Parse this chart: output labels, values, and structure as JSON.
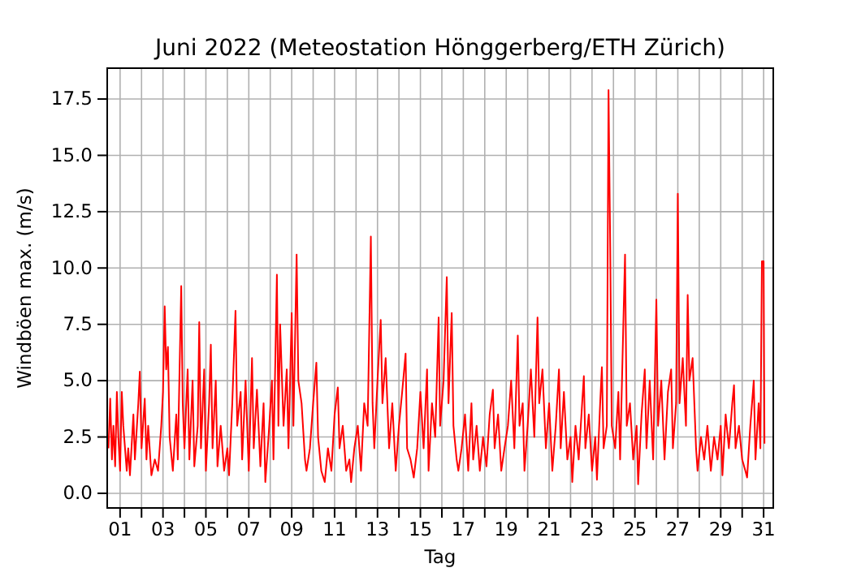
{
  "chart_data": {
    "type": "line",
    "title": "Juni 2022  (Meteostation Hönggerberg/ETH Zürich)",
    "xlabel": "Tag",
    "ylabel": "Windböen max. (m/s)",
    "grid": true,
    "line_style": "solid",
    "marker": "none",
    "xlim": [
      0.4,
      31.45
    ],
    "ylim": [
      -0.65,
      18.87
    ],
    "xticks": [
      {
        "value": 1,
        "label": "01"
      },
      {
        "value": 2,
        "label": null
      },
      {
        "value": 3,
        "label": "03"
      },
      {
        "value": 4,
        "label": null
      },
      {
        "value": 5,
        "label": "05"
      },
      {
        "value": 6,
        "label": null
      },
      {
        "value": 7,
        "label": "07"
      },
      {
        "value": 8,
        "label": null
      },
      {
        "value": 9,
        "label": "09"
      },
      {
        "value": 10,
        "label": null
      },
      {
        "value": 11,
        "label": "11"
      },
      {
        "value": 12,
        "label": null
      },
      {
        "value": 13,
        "label": "13"
      },
      {
        "value": 14,
        "label": null
      },
      {
        "value": 15,
        "label": "15"
      },
      {
        "value": 16,
        "label": null
      },
      {
        "value": 17,
        "label": "17"
      },
      {
        "value": 18,
        "label": null
      },
      {
        "value": 19,
        "label": "19"
      },
      {
        "value": 20,
        "label": null
      },
      {
        "value": 21,
        "label": "21"
      },
      {
        "value": 22,
        "label": null
      },
      {
        "value": 23,
        "label": "23"
      },
      {
        "value": 24,
        "label": null
      },
      {
        "value": 25,
        "label": "25"
      },
      {
        "value": 26,
        "label": null
      },
      {
        "value": 27,
        "label": "27"
      },
      {
        "value": 28,
        "label": null
      },
      {
        "value": 29,
        "label": "29"
      },
      {
        "value": 30,
        "label": null
      },
      {
        "value": 31,
        "label": "31"
      }
    ],
    "yticks": [
      {
        "value": 0,
        "label": "0.0"
      },
      {
        "value": 2.5,
        "label": "2.5"
      },
      {
        "value": 5,
        "label": "5.0"
      },
      {
        "value": 7.5,
        "label": "7.5"
      },
      {
        "value": 10,
        "label": "10.0"
      },
      {
        "value": 12.5,
        "label": "12.5"
      },
      {
        "value": 15,
        "label": "15.0"
      },
      {
        "value": 17.5,
        "label": "17.5"
      }
    ],
    "series": [
      {
        "color": "#ff0000",
        "x": [
          0.46,
          0.54,
          0.62,
          0.69,
          0.77,
          0.85,
          0.92,
          1.0,
          1.08,
          1.15,
          1.31,
          1.38,
          1.46,
          1.62,
          1.69,
          1.85,
          1.92,
          2.0,
          2.15,
          2.23,
          2.31,
          2.46,
          2.62,
          2.77,
          2.92,
          3.0,
          3.08,
          3.15,
          3.23,
          3.31,
          3.46,
          3.62,
          3.69,
          3.85,
          3.92,
          4.0,
          4.15,
          4.23,
          4.38,
          4.46,
          4.62,
          4.69,
          4.77,
          4.92,
          5.0,
          5.15,
          5.23,
          5.31,
          5.46,
          5.54,
          5.69,
          5.85,
          6.0,
          6.08,
          6.23,
          6.38,
          6.46,
          6.62,
          6.69,
          6.85,
          7.0,
          7.15,
          7.23,
          7.38,
          7.54,
          7.69,
          7.77,
          7.92,
          8.08,
          8.15,
          8.31,
          8.38,
          8.46,
          8.62,
          8.77,
          8.85,
          9.0,
          9.08,
          9.23,
          9.31,
          9.46,
          9.62,
          9.69,
          9.85,
          10.0,
          10.15,
          10.23,
          10.38,
          10.54,
          10.69,
          10.85,
          11.0,
          11.15,
          11.23,
          11.38,
          11.54,
          11.69,
          11.77,
          11.92,
          12.08,
          12.23,
          12.38,
          12.54,
          12.69,
          12.77,
          12.85,
          13.0,
          13.15,
          13.23,
          13.38,
          13.54,
          13.69,
          13.85,
          14.0,
          14.15,
          14.31,
          14.38,
          14.54,
          14.69,
          14.85,
          15.0,
          15.15,
          15.31,
          15.38,
          15.54,
          15.69,
          15.85,
          15.92,
          16.08,
          16.23,
          16.31,
          16.46,
          16.54,
          16.69,
          16.77,
          16.92,
          17.08,
          17.23,
          17.38,
          17.46,
          17.62,
          17.77,
          17.92,
          18.08,
          18.23,
          18.38,
          18.46,
          18.62,
          18.77,
          18.92,
          19.08,
          19.23,
          19.38,
          19.54,
          19.62,
          19.77,
          19.85,
          20.0,
          20.15,
          20.31,
          20.46,
          20.54,
          20.69,
          20.85,
          21.0,
          21.15,
          21.31,
          21.46,
          21.54,
          21.69,
          21.85,
          22.0,
          22.08,
          22.23,
          22.38,
          22.54,
          22.62,
          22.69,
          22.85,
          23.0,
          23.15,
          23.23,
          23.38,
          23.46,
          23.54,
          23.69,
          23.77,
          23.85,
          23.92,
          24.08,
          24.23,
          24.31,
          24.46,
          24.54,
          24.62,
          24.77,
          24.92,
          25.08,
          25.15,
          25.31,
          25.46,
          25.54,
          25.69,
          25.85,
          26.0,
          26.08,
          26.23,
          26.38,
          26.54,
          26.69,
          26.77,
          26.92,
          27.0,
          27.08,
          27.23,
          27.38,
          27.46,
          27.54,
          27.69,
          27.85,
          27.92,
          28.08,
          28.23,
          28.38,
          28.54,
          28.69,
          28.85,
          29.0,
          29.08,
          29.23,
          29.38,
          29.54,
          29.62,
          29.69,
          29.85,
          30.0,
          30.15,
          30.23,
          30.38,
          30.54,
          30.62,
          30.77,
          30.85,
          30.92,
          31.0,
          31.04
        ],
        "values": [
          2.0,
          4.2,
          1.5,
          3.0,
          1.2,
          4.5,
          2.5,
          1.0,
          4.5,
          3.0,
          1.0,
          2.0,
          0.8,
          3.5,
          1.5,
          4.0,
          5.4,
          2.0,
          4.2,
          1.5,
          3.0,
          0.8,
          1.5,
          1.0,
          3.0,
          4.5,
          8.3,
          5.5,
          6.5,
          2.5,
          1.0,
          3.5,
          1.5,
          9.2,
          4.0,
          2.0,
          5.5,
          1.5,
          5.0,
          1.2,
          3.0,
          7.6,
          2.0,
          5.5,
          1.0,
          4.0,
          6.6,
          2.0,
          5.0,
          1.2,
          3.0,
          1.0,
          2.0,
          0.8,
          4.0,
          8.1,
          3.0,
          4.5,
          1.5,
          5.0,
          1.0,
          6.0,
          2.0,
          4.6,
          1.2,
          4.0,
          0.5,
          2.5,
          5.0,
          1.5,
          9.7,
          3.0,
          7.5,
          3.0,
          5.5,
          2.0,
          8.0,
          3.0,
          10.6,
          5.0,
          4.0,
          1.5,
          1.0,
          2.0,
          4.0,
          5.8,
          2.5,
          1.0,
          0.5,
          2.0,
          1.0,
          3.5,
          4.7,
          2.0,
          3.0,
          1.0,
          1.5,
          0.5,
          2.0,
          3.0,
          1.0,
          4.0,
          3.0,
          11.4,
          4.0,
          2.0,
          5.0,
          7.7,
          4.0,
          6.0,
          2.0,
          4.0,
          1.0,
          3.0,
          4.5,
          6.2,
          2.0,
          1.5,
          0.7,
          2.0,
          4.5,
          2.0,
          5.5,
          1.0,
          4.0,
          2.5,
          7.8,
          3.0,
          5.0,
          9.6,
          4.0,
          8.0,
          3.0,
          1.5,
          1.0,
          2.0,
          3.5,
          1.0,
          4.0,
          1.5,
          3.0,
          1.0,
          2.5,
          1.2,
          3.5,
          4.6,
          2.0,
          3.5,
          1.0,
          2.0,
          3.0,
          5.0,
          2.0,
          7.0,
          3.0,
          4.0,
          1.0,
          3.0,
          5.5,
          2.5,
          7.8,
          4.0,
          5.5,
          2.0,
          4.0,
          1.0,
          3.0,
          5.5,
          2.0,
          4.5,
          1.5,
          2.5,
          0.5,
          3.0,
          1.5,
          4.0,
          5.2,
          2.0,
          3.5,
          1.0,
          2.5,
          0.6,
          4.0,
          5.6,
          2.0,
          3.0,
          17.9,
          10.8,
          3.0,
          2.0,
          4.5,
          1.5,
          7.5,
          10.6,
          3.0,
          4.0,
          1.5,
          3.0,
          0.4,
          3.5,
          5.5,
          2.0,
          5.0,
          1.5,
          8.6,
          3.0,
          5.0,
          1.5,
          4.5,
          5.5,
          2.0,
          4.0,
          13.3,
          4.0,
          6.0,
          3.0,
          8.8,
          5.0,
          6.0,
          2.0,
          1.0,
          2.5,
          1.5,
          3.0,
          1.0,
          2.5,
          1.5,
          3.0,
          0.8,
          3.5,
          2.0,
          4.0,
          4.8,
          2.0,
          3.0,
          1.5,
          1.0,
          0.7,
          3.0,
          5.0,
          1.5,
          4.0,
          2.0,
          10.3,
          10.3,
          2.2
        ]
      }
    ]
  }
}
